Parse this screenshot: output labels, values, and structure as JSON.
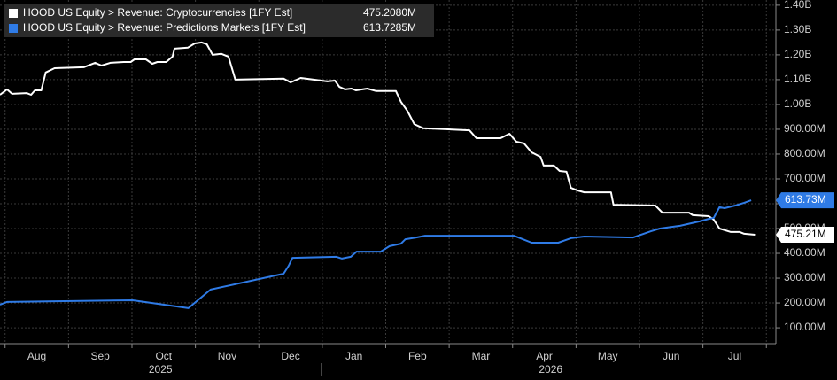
{
  "chart_data": {
    "type": "line",
    "series": [
      {
        "name": "HOOD US Equity > Revenue: Cryptocurrencies [1FY Est]",
        "legend_value": "475.2080M",
        "end_label": "475.21M",
        "color": "#ffffff",
        "x": [
          -0.08,
          0.03,
          0.11,
          0.34,
          0.41,
          0.47,
          0.57,
          0.64,
          0.78,
          1.24,
          1.42,
          1.52,
          1.66,
          1.87,
          1.98,
          2.04,
          2.22,
          2.32,
          2.4,
          2.54,
          2.64,
          2.67,
          2.88,
          2.99,
          3.1,
          3.18,
          3.27,
          3.41,
          3.52,
          3.63,
          4.39,
          4.5,
          4.66,
          5.08,
          5.2,
          5.27,
          5.36,
          5.46,
          5.53,
          5.71,
          5.85,
          6.16,
          6.24,
          6.34,
          6.45,
          6.59,
          7.32,
          7.43,
          7.81,
          7.95,
          8.06,
          8.18,
          8.3,
          8.44,
          8.49,
          8.65,
          8.74,
          8.85,
          8.92,
          9.02,
          9.13,
          9.55,
          9.59,
          10.25,
          10.36,
          10.78,
          10.84,
          11.09,
          11.17,
          11.26,
          11.4,
          11.44,
          11.58,
          11.65,
          11.82
        ],
        "values": [
          1039,
          1061,
          1043,
          1046,
          1039,
          1057,
          1057,
          1129,
          1146,
          1150,
          1168,
          1157,
          1168,
          1171,
          1171,
          1182,
          1182,
          1164,
          1171,
          1171,
          1193,
          1225,
          1229,
          1246,
          1250,
          1243,
          1200,
          1204,
          1193,
          1100,
          1104,
          1089,
          1107,
          1093,
          1096,
          1071,
          1061,
          1064,
          1057,
          1064,
          1054,
          1054,
          1011,
          975,
          921,
          904,
          896,
          864,
          864,
          882,
          850,
          843,
          807,
          789,
          754,
          754,
          732,
          729,
          664,
          654,
          646,
          646,
          596,
          593,
          564,
          564,
          554,
          550,
          536,
          500,
          489,
          486,
          486,
          479,
          475
        ]
      },
      {
        "name": "HOOD US Equity > Revenue: Predictions Markets [1FY Est]",
        "legend_value": "613.7285M",
        "end_label": "613.73M",
        "color": "#2f7be6",
        "x": [
          -0.08,
          0.03,
          2.01,
          2.89,
          3.24,
          4.39,
          4.47,
          4.53,
          5.22,
          5.31,
          5.36,
          5.45,
          5.54,
          5.92,
          6.06,
          6.24,
          6.31,
          6.48,
          6.62,
          8.02,
          8.16,
          8.3,
          8.72,
          8.92,
          9.13,
          9.9,
          10.18,
          10.32,
          10.64,
          10.95,
          11.09,
          11.17,
          11.26,
          11.34,
          11.51,
          11.65,
          11.76
        ],
        "values": [
          193,
          204,
          211,
          179,
          254,
          318,
          350,
          382,
          386,
          379,
          382,
          386,
          407,
          407,
          429,
          439,
          457,
          464,
          471,
          471,
          457,
          443,
          443,
          461,
          468,
          464,
          489,
          500,
          511,
          529,
          539,
          543,
          586,
          582,
          593,
          604,
          614
        ]
      }
    ],
    "xlim": [
      -0.08,
      12.15
    ],
    "xticks": [
      0,
      1,
      2,
      3,
      4,
      5,
      6,
      7,
      8,
      9,
      10,
      11,
      12
    ],
    "x_labels": [
      {
        "value": 0.5,
        "label": "Aug"
      },
      {
        "value": 1.5,
        "label": "Sep"
      },
      {
        "value": 2.5,
        "label": "Oct"
      },
      {
        "value": 3.5,
        "label": "Nov"
      },
      {
        "value": 4.5,
        "label": "Dec"
      },
      {
        "value": 5.5,
        "label": "Jan"
      },
      {
        "value": 6.5,
        "label": "Feb"
      },
      {
        "value": 7.5,
        "label": "Mar"
      },
      {
        "value": 8.5,
        "label": "Apr"
      },
      {
        "value": 9.5,
        "label": "May"
      },
      {
        "value": 10.5,
        "label": "Jun"
      },
      {
        "value": 11.5,
        "label": "Jul"
      }
    ],
    "x_year_labels": [
      {
        "value": 2.45,
        "label": "2025"
      },
      {
        "value": 8.6,
        "label": "2026"
      }
    ],
    "ylim": [
      36,
      1421
    ],
    "yticks": [
      {
        "value": 100,
        "label": "100.00M"
      },
      {
        "value": 200,
        "label": "200.00M"
      },
      {
        "value": 300,
        "label": "300.00M"
      },
      {
        "value": 400,
        "label": "400.00M"
      },
      {
        "value": 500,
        "label": "500.00M"
      },
      {
        "value": 600,
        "label": "600.00M"
      },
      {
        "value": 700,
        "label": "700.00M"
      },
      {
        "value": 800,
        "label": "800.00M"
      },
      {
        "value": 900,
        "label": "900.00M"
      },
      {
        "value": 1000,
        "label": "1.00B"
      },
      {
        "value": 1100,
        "label": "1.10B"
      },
      {
        "value": 1200,
        "label": "1.20B"
      },
      {
        "value": 1300,
        "label": "1.30B"
      },
      {
        "value": 1400,
        "label": "1.40B"
      }
    ],
    "grid": true
  }
}
